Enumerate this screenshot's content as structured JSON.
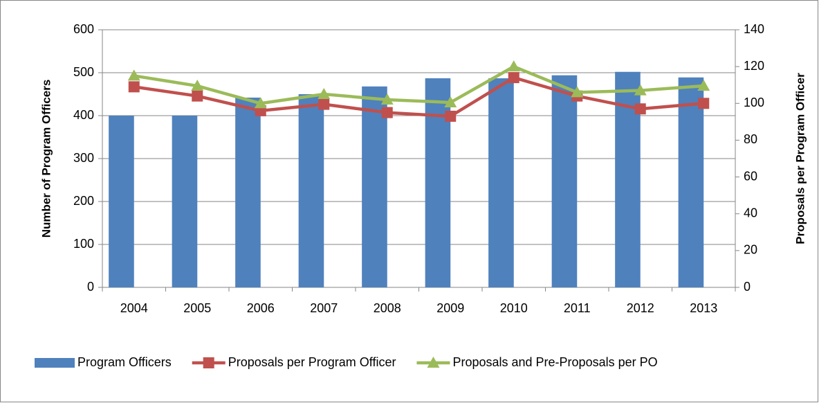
{
  "chart_data": {
    "type": "bar",
    "categories": [
      "2004",
      "2005",
      "2006",
      "2007",
      "2008",
      "2009",
      "2010",
      "2011",
      "2012",
      "2013"
    ],
    "series": [
      {
        "name": "Program Officers",
        "type": "bar",
        "color": "#4f81bd",
        "values": [
          400,
          400,
          442,
          450,
          468,
          487,
          487,
          494,
          502,
          489
        ]
      },
      {
        "name": "Proposals per Program Officer",
        "type": "line",
        "marker": "square",
        "axis": "y2",
        "color": "#c0504d",
        "values": [
          109,
          104,
          96,
          99.5,
          95,
          93,
          114,
          104,
          97,
          100
        ]
      },
      {
        "name": "Proposals and Pre-Proposals per PO",
        "type": "line",
        "marker": "triangle",
        "axis": "y2",
        "color": "#9bbb59",
        "values": [
          115,
          109.5,
          100,
          105,
          102,
          100.5,
          120,
          106,
          107,
          109.5
        ]
      }
    ],
    "ylabel": "Number of Program Officers",
    "y2label": "Proposals per Program Officer",
    "ylim": [
      0,
      600
    ],
    "yticks": [
      0,
      100,
      200,
      300,
      400,
      500,
      600
    ],
    "y2lim": [
      0,
      140
    ],
    "y2ticks": [
      0,
      20,
      40,
      60,
      80,
      100,
      120,
      140
    ],
    "grid": true,
    "legend": "bottom"
  }
}
